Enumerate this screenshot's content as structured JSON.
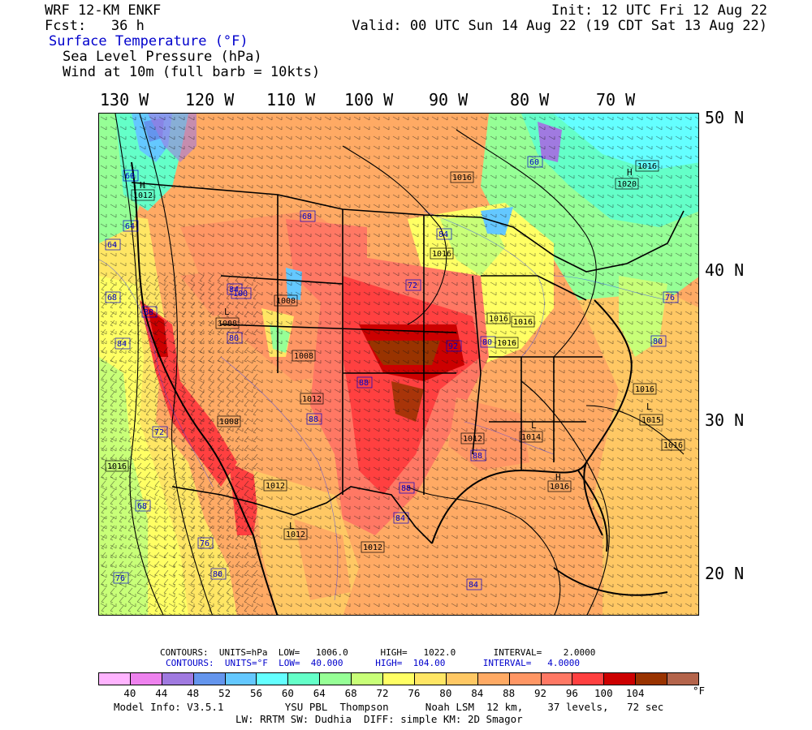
{
  "header": {
    "model_title": "WRF 12-KM ENKF",
    "forecast_hour": "Fcst:   36 h",
    "init_time": "Init: 12 UTC Fri 12 Aug 22",
    "valid_time": "Valid: 00 UTC Sun 14 Aug 22 (19 CDT Sat 13 Aug 22)",
    "field_primary": "Surface Temperature (°F)",
    "field_pressure": "Sea Level Pressure (hPa)",
    "field_wind": "Wind at 10m (full barb = 10kts)"
  },
  "axes": {
    "longitudes": [
      "130 W",
      "120 W",
      "110 W",
      "100 W",
      "90 W",
      "80 W",
      "70 W"
    ],
    "latitudes": [
      "50 N",
      "40 N",
      "30 N",
      "20 N"
    ]
  },
  "map_labels": {
    "temperature": [
      "60",
      "64",
      "64",
      "68",
      "88",
      "84",
      "72",
      "68",
      "76",
      "80",
      "76",
      "84",
      "88",
      "88",
      "68",
      "72",
      "80",
      "88",
      "84",
      "76",
      "80",
      "84",
      "88",
      "60",
      "84",
      "84",
      "80",
      "100",
      "92",
      "72",
      "100",
      "84"
    ],
    "pressure": [
      "1012",
      "1016",
      "1008",
      "1008",
      "1016",
      "1016",
      "1016",
      "1016",
      "1016",
      "1016",
      "1012",
      "1012",
      "1016",
      "1016",
      "1020",
      "1015",
      "1016",
      "1014",
      "1016",
      "1008",
      "1008",
      "1012",
      "1012",
      "1016",
      "1012",
      "1016",
      "1008"
    ],
    "highs": [
      "H",
      "H",
      "H"
    ],
    "lows": [
      "L",
      "L",
      "L",
      "L"
    ]
  },
  "contour_info": {
    "line1": "CONTOURS:  UNITS=hPa  LOW=   1006.0      HIGH=   1022.0       INTERVAL=    2.0000",
    "line2": "CONTOURS:  UNITS=°F  LOW=  40.000      HIGH=  104.00       INTERVAL=   4.0000"
  },
  "colorbar": {
    "colors": [
      "#ffb4ff",
      "#ee82ee",
      "#a07ae0",
      "#6495ed",
      "#64c8ff",
      "#64ffff",
      "#64ffc8",
      "#96ff96",
      "#c8ff78",
      "#ffff64",
      "#ffe664",
      "#ffc864",
      "#ffaa64",
      "#ff9664",
      "#ff7864",
      "#ff4040",
      "#cc0000",
      "#993300",
      "#b4644b"
    ],
    "labels": [
      "40",
      "44",
      "48",
      "52",
      "56",
      "60",
      "64",
      "68",
      "72",
      "76",
      "80",
      "84",
      "88",
      "92",
      "96",
      "100",
      "104"
    ],
    "unit": "°F"
  },
  "model_info": {
    "line1": "Model Info: V3.5.1          YSU PBL  Thompson      Noah LSM  12 km,    37 levels,   72 sec",
    "line2": "LW: RRTM SW: Dudhia  DIFF: simple KM: 2D Smagor"
  },
  "colors": {
    "temp_label": "#0000cc",
    "background": "#ffffff"
  }
}
